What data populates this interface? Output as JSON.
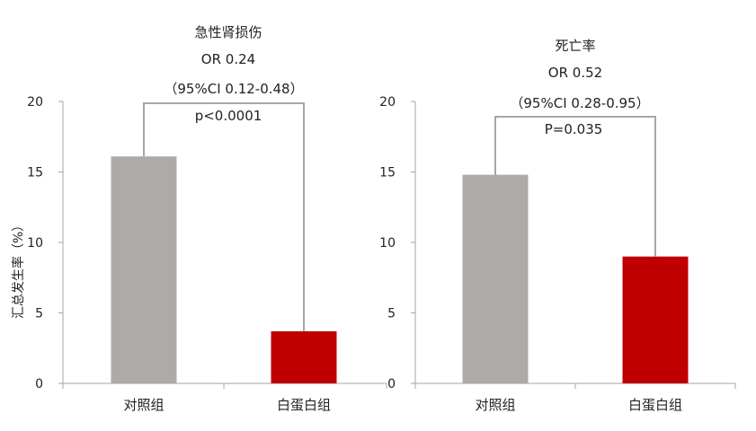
{
  "ylabel": "汇总发生率（%）",
  "colors": {
    "control": "#aeaaaa",
    "albumin": "#c00000",
    "axis": "#a6a6a6",
    "bracket": "#a6a6a6"
  },
  "chart_data": [
    {
      "type": "bar",
      "title": "急性肾损伤",
      "categories": [
        "对照组",
        "白蛋白组"
      ],
      "values": [
        16.1,
        3.7
      ],
      "ylim": [
        0,
        20
      ],
      "yticks": [
        0,
        5,
        10,
        15,
        20
      ],
      "ytick_labels": [
        "0",
        "5",
        "10",
        "15",
        "20"
      ],
      "ylabel": "汇总发生率（%）",
      "grid": false,
      "annotations": [
        "急性肾损伤",
        "OR 0.24",
        "（95%CI 0.12-0.48）",
        "p<0.0001"
      ]
    },
    {
      "type": "bar",
      "title": "死亡率",
      "categories": [
        "对照组",
        "白蛋白组"
      ],
      "values": [
        14.8,
        9.0
      ],
      "ylim": [
        0,
        20
      ],
      "yticks": [
        0,
        5,
        10,
        15,
        20
      ],
      "ytick_labels": [
        "0",
        "5",
        "10",
        "15",
        "20"
      ],
      "grid": false,
      "annotations": [
        "死亡率",
        "OR 0.52",
        "（95%CI 0.28-0.95）",
        "P=0.035"
      ]
    }
  ]
}
